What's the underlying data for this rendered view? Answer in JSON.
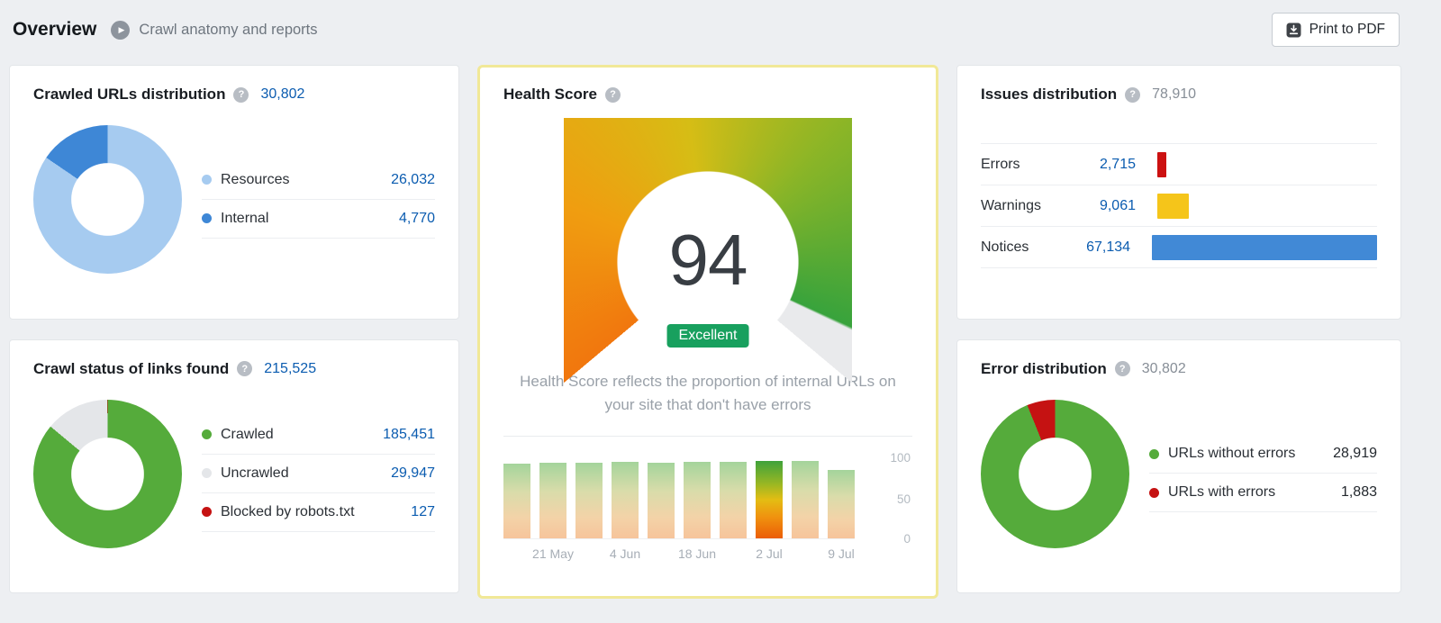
{
  "colors": {
    "link_blue": "#0b5cb0",
    "badge_green": "#18a05e",
    "highlight_border": "#f1e897"
  },
  "icons": {
    "play": "▶",
    "help": "?",
    "download": "download-to-pdf"
  },
  "header": {
    "title": "Overview",
    "subtitle": "Crawl anatomy and reports",
    "print_button": "Print to PDF"
  },
  "cards": {
    "crawled": {
      "title": "Crawled URLs distribution",
      "total": "30,802",
      "legend": [
        {
          "label": "Resources",
          "value": "26,032",
          "value_num": 26032,
          "color": "#a6cbf0"
        },
        {
          "label": "Internal",
          "value": "4,770",
          "value_num": 4770,
          "color": "#3e87d6"
        }
      ]
    },
    "crawl_status": {
      "title": "Crawl status of links found",
      "total": "215,525",
      "legend": [
        {
          "label": "Crawled",
          "value": "185,451",
          "value_num": 185451,
          "color": "#55ab3b"
        },
        {
          "label": "Uncrawled",
          "value": "29,947",
          "value_num": 29947,
          "color": "#e4e6e9"
        },
        {
          "label": "Blocked by robots.txt",
          "value": "127",
          "value_num": 127,
          "color": "#c51212"
        }
      ]
    },
    "health_score": {
      "title": "Health Score",
      "score": "94",
      "score_num": 94,
      "badge": "Excellent",
      "description": "Health Score reflects the proportion of internal URLs on your site that don't have errors",
      "history": {
        "values": [
          90,
          91,
          91,
          92,
          91,
          92,
          92,
          94,
          93,
          83
        ],
        "selected_index": 7,
        "x_labels": [
          "21 May",
          "4 Jun",
          "18 Jun",
          "2 Jul",
          "9 Jul"
        ],
        "y_ticks": [
          "100",
          "50",
          "0"
        ]
      }
    },
    "issues": {
      "title": "Issues distribution",
      "total": "78,910",
      "rows": [
        {
          "label": "Errors",
          "value": "2,715",
          "value_num": 2715,
          "color": "#cc1111"
        },
        {
          "label": "Warnings",
          "value": "9,061",
          "value_num": 9061,
          "color": "#f5c51a"
        },
        {
          "label": "Notices",
          "value": "67,134",
          "value_num": 67134,
          "color": "#4189d6"
        }
      ]
    },
    "errors_dist": {
      "title": "Error distribution",
      "total": "30,802",
      "legend": [
        {
          "label": "URLs without errors",
          "value": "28,919",
          "value_num": 28919,
          "color": "#55ab3b"
        },
        {
          "label": "URLs with errors",
          "value": "1,883",
          "value_num": 1883,
          "color": "#c51212"
        }
      ]
    }
  },
  "chart_data": [
    {
      "type": "pie",
      "subtype": "donut",
      "title": "Crawled URLs distribution",
      "total": 30802,
      "labels": [
        "Resources",
        "Internal"
      ],
      "values": [
        26032,
        4770
      ],
      "colors": [
        "#a6cbf0",
        "#3e87d6"
      ]
    },
    {
      "type": "pie",
      "subtype": "gauge",
      "title": "Health Score",
      "value": 94,
      "max": 100,
      "label": "Excellent"
    },
    {
      "type": "bar",
      "title": "Health Score history",
      "x_tick_labels": [
        "21 May",
        "4 Jun",
        "18 Jun",
        "2 Jul",
        "9 Jul"
      ],
      "values": [
        90,
        91,
        91,
        92,
        91,
        92,
        92,
        94,
        93,
        83
      ],
      "ylim": [
        0,
        100
      ],
      "yticks": [
        0,
        50,
        100
      ],
      "highlighted_bar_index": 7
    },
    {
      "type": "bar",
      "subtype": "horizontal",
      "title": "Issues distribution",
      "total": 78910,
      "categories": [
        "Errors",
        "Warnings",
        "Notices"
      ],
      "values": [
        2715,
        9061,
        67134
      ],
      "colors": [
        "#cc1111",
        "#f5c51a",
        "#4189d6"
      ]
    },
    {
      "type": "pie",
      "subtype": "donut",
      "title": "Crawl status of links found",
      "total": 215525,
      "labels": [
        "Crawled",
        "Uncrawled",
        "Blocked by robots.txt"
      ],
      "values": [
        185451,
        29947,
        127
      ],
      "colors": [
        "#55ab3b",
        "#e4e6e9",
        "#c51212"
      ]
    },
    {
      "type": "pie",
      "subtype": "donut",
      "title": "Error distribution",
      "total": 30802,
      "labels": [
        "URLs without errors",
        "URLs with errors"
      ],
      "values": [
        28919,
        1883
      ],
      "colors": [
        "#55ab3b",
        "#c51212"
      ]
    }
  ]
}
